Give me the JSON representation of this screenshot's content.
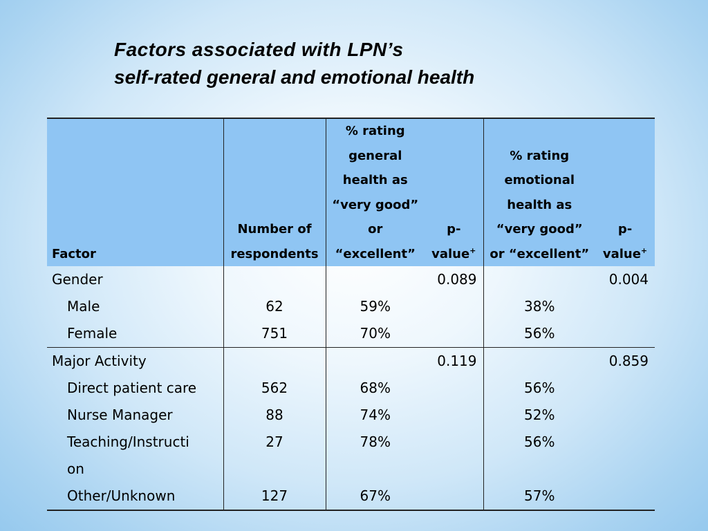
{
  "title": {
    "line1": "Factors associated with LPN’s",
    "line2": "self-rated general and emotional health"
  },
  "table": {
    "headers": {
      "factor": "Factor",
      "respondents": [
        "Number of",
        "respondents"
      ],
      "general": [
        "% rating",
        "general",
        "health as",
        "“very good”",
        "or",
        "“excellent”"
      ],
      "p1": [
        "p-",
        "value"
      ],
      "emotional": [
        "% rating",
        "emotional",
        "health as",
        "“very good”",
        "or “excellent”"
      ],
      "p2": [
        "p-",
        "value"
      ],
      "pvalue_sup": "+"
    },
    "groups": [
      {
        "label": "Gender",
        "p_general": "0.089",
        "p_emotional": "0.004",
        "rows": [
          {
            "label": "Male",
            "n": "62",
            "general": "59%",
            "emotional": "38%"
          },
          {
            "label": "Female",
            "n": "751",
            "general": "70%",
            "emotional": "56%"
          }
        ]
      },
      {
        "label": "Major Activity",
        "p_general": "0.119",
        "p_emotional": "0.859",
        "rows": [
          {
            "label": "Direct patient care",
            "n": "562",
            "general": "68%",
            "emotional": "56%"
          },
          {
            "label": "Nurse Manager",
            "n": "88",
            "general": "74%",
            "emotional": "52%"
          },
          {
            "label": "Teaching/Instructi",
            "label_cont": "on",
            "n": "27",
            "general": "78%",
            "emotional": "56%"
          },
          {
            "label": "Other/Unknown",
            "n": "127",
            "general": "67%",
            "emotional": "57%"
          }
        ]
      }
    ]
  }
}
